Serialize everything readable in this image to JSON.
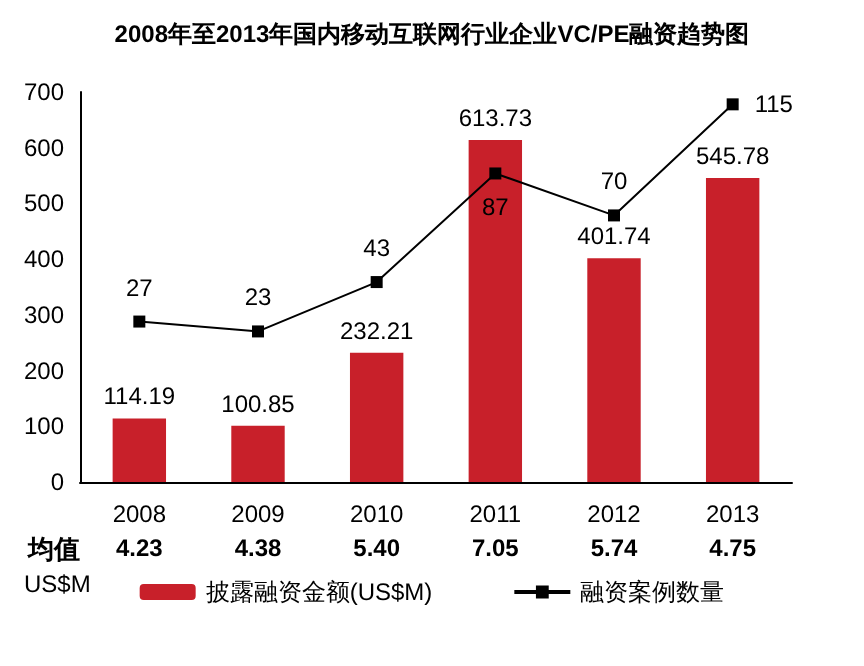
{
  "chart_data": {
    "type": "bar",
    "title": "2008年至2013年国内移动互联网行业企业VC/PE融资趋势图",
    "categories": [
      "2008",
      "2009",
      "2010",
      "2011",
      "2012",
      "2013"
    ],
    "series": [
      {
        "name": "披露融资金额(US$M)",
        "color": "#c8202a",
        "values": [
          114.19,
          100.85,
          232.21,
          613.73,
          401.74,
          545.78
        ]
      },
      {
        "name": "融资案例数量",
        "type": "line",
        "axis": "y2",
        "color": "#000000",
        "marker": "square",
        "values": [
          27,
          23,
          43,
          87,
          70,
          115
        ]
      }
    ],
    "ylim": [
      0,
      700
    ],
    "yticks": [
      0,
      100,
      200,
      300,
      400,
      500,
      600,
      700
    ],
    "y2lim": [
      -38,
      120
    ],
    "tick_labels": "xy",
    "data_labels": true,
    "grid": false,
    "legend": "bottom",
    "annotations": [
      "均值",
      "US$M",
      "4.23",
      "4.38",
      "5.40",
      "7.05",
      "5.74",
      "4.75"
    ]
  }
}
